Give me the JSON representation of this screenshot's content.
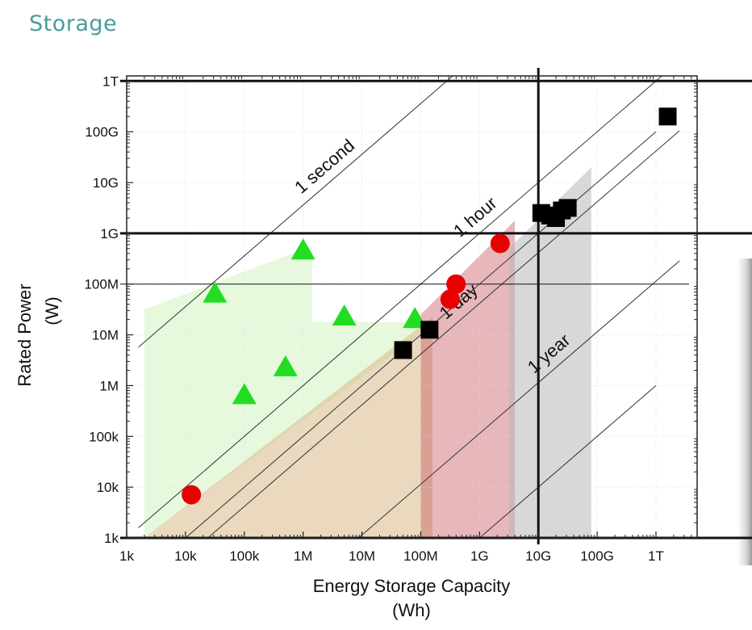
{
  "slide": {
    "title": "Storage"
  },
  "chart_data": {
    "type": "scatter",
    "xscale": "log10",
    "yscale": "log10",
    "xlim_log10": [
      3,
      12.7
    ],
    "ylim_log10": [
      3,
      12.1
    ],
    "x_ticks": [
      {
        "label": "1k",
        "log10": 3
      },
      {
        "label": "10k",
        "log10": 4
      },
      {
        "label": "100k",
        "log10": 5
      },
      {
        "label": "1M",
        "log10": 6
      },
      {
        "label": "10M",
        "log10": 7
      },
      {
        "label": "100M",
        "log10": 8
      },
      {
        "label": "1G",
        "log10": 9
      },
      {
        "label": "10G",
        "log10": 10
      },
      {
        "label": "100G",
        "log10": 11
      },
      {
        "label": "1T",
        "log10": 12
      }
    ],
    "y_ticks": [
      {
        "label": "1k",
        "log10": 3
      },
      {
        "label": "10k",
        "log10": 4
      },
      {
        "label": "100k",
        "log10": 5
      },
      {
        "label": "1M",
        "log10": 6
      },
      {
        "label": "10M",
        "log10": 7
      },
      {
        "label": "100M",
        "log10": 8
      },
      {
        "label": "1G",
        "log10": 9
      },
      {
        "label": "10G",
        "log10": 10
      },
      {
        "label": "100G",
        "log10": 11
      },
      {
        "label": "1T",
        "log10": 12
      }
    ],
    "xlabel": "Energy Storage Capacity",
    "xlabel_unit": "(Wh)",
    "ylabel": "Rated Power",
    "ylabel_unit": "(W)",
    "reference_lines": [
      {
        "label": "1 second",
        "duration_hours": 0.000278
      },
      {
        "label": "1 hour",
        "duration_hours": 1
      },
      {
        "label": "1 day",
        "duration_hours": 24
      },
      {
        "label": "1 year",
        "duration_hours": 8760
      }
    ],
    "extra_lines": [
      {
        "kind": "power_bound",
        "log10_x_range": [
          3.3,
          12.7
        ],
        "log10_y": 3
      },
      {
        "kind": "power_threshold",
        "log10_x_range": [
          3.3,
          12.7
        ],
        "log10_y": 8
      },
      {
        "kind": "power_bound",
        "log10_x_range": [
          3.3,
          12.7
        ],
        "log10_y": 9
      },
      {
        "kind": "power_bound",
        "log10_x_range": [
          3.3,
          12.7
        ],
        "log10_y": 12
      },
      {
        "kind": "capacity_bound",
        "log10_x": 10,
        "log10_y_range": [
          3,
          12.1
        ]
      }
    ],
    "regions": [
      {
        "name": "green-region",
        "color": "#dff7d2",
        "opacity": 0.75,
        "log10_points": [
          [
            3.3,
            3.15
          ],
          [
            3.3,
            7.5
          ],
          [
            6.15,
            8.75
          ],
          [
            6.15,
            7.25
          ],
          [
            8.2,
            7.25
          ],
          [
            8.2,
            7.2
          ],
          [
            3.3,
            3
          ]
        ]
      },
      {
        "name": "tan-region",
        "color": "#d9b98a",
        "opacity": 0.55,
        "log10_points": [
          [
            3.3,
            3
          ],
          [
            8.2,
            3
          ],
          [
            8.2,
            7.35
          ],
          [
            3.3,
            3
          ]
        ]
      },
      {
        "name": "red-region",
        "color": "#c44a56",
        "opacity": 0.4,
        "log10_points": [
          [
            8.0,
            3
          ],
          [
            9.6,
            3
          ],
          [
            9.6,
            9.25
          ],
          [
            8.0,
            7.4
          ]
        ]
      },
      {
        "name": "gray-region",
        "color": "#b8b8b8",
        "opacity": 0.55,
        "log10_points": [
          [
            9.5,
            3
          ],
          [
            10.9,
            3
          ],
          [
            10.9,
            10.3
          ],
          [
            9.5,
            8.7
          ]
        ]
      }
    ],
    "series": [
      {
        "name": "green-triangles",
        "marker": "triangle",
        "color": "#22dd22",
        "points": [
          [
            4.5,
            7.8
          ],
          [
            6.0,
            8.65
          ],
          [
            5.0,
            5.8
          ],
          [
            5.7,
            6.35
          ],
          [
            6.7,
            7.35
          ],
          [
            7.9,
            7.3
          ]
        ]
      },
      {
        "name": "red-circles",
        "marker": "circle",
        "color": "#e60000",
        "points": [
          [
            4.1,
            3.85
          ],
          [
            8.5,
            7.7
          ],
          [
            8.6,
            8.0
          ],
          [
            9.35,
            8.8
          ]
        ]
      },
      {
        "name": "black-squares",
        "marker": "square",
        "color": "#000000",
        "points": [
          [
            7.7,
            6.7
          ],
          [
            8.15,
            7.1
          ],
          [
            10.05,
            9.4
          ],
          [
            10.2,
            9.35
          ],
          [
            10.3,
            9.3
          ],
          [
            10.4,
            9.45
          ],
          [
            10.5,
            9.5
          ],
          [
            12.2,
            11.3
          ]
        ]
      }
    ]
  }
}
